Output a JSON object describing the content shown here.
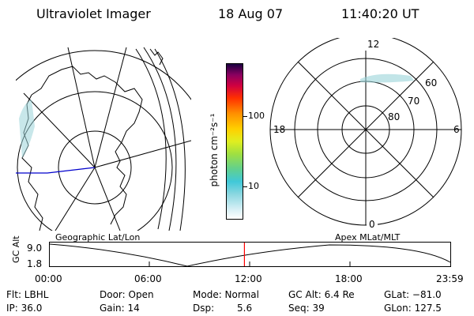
{
  "header": {
    "instrument": "Ultraviolet Imager",
    "date": "18 Aug 07",
    "time": "11:40:20 UT"
  },
  "colorbar": {
    "unit_label": "photon cm⁻²s⁻¹",
    "ticks": [
      "100",
      "10"
    ]
  },
  "polar_plot": {
    "mlt_labels": {
      "top": "12",
      "left": "18",
      "right": "6",
      "bottom": "0"
    },
    "lat_labels": [
      "60",
      "70",
      "80"
    ]
  },
  "timeline": {
    "left_title": "Geographic Lat/Lon",
    "right_title": "Apex MLat/MLT",
    "axis_label": "GC Alt",
    "y_ticks": [
      "9.0",
      "1.8"
    ],
    "x_ticks": [
      "00:00",
      "06:00",
      "12:00",
      "18:00",
      "23:59"
    ],
    "current_time_fraction": 0.486
  },
  "status": {
    "row1": {
      "filter": "Flt: LBHL",
      "door": "Door: Open",
      "mode": "Mode: Normal",
      "gc_alt": "GC Alt: 6.4 Re",
      "glat": "GLat: −81.0"
    },
    "row2": {
      "ip": "IP: 36.0",
      "gain": "Gain: 14",
      "dsp_label": "Dsp:",
      "dsp_value": "5.6",
      "seq": "Seq: 39",
      "glon": "GLon: 127.5"
    }
  },
  "colors": {
    "trajectory": "#0000cc",
    "time_marker": "#ff0000",
    "aurora": "#9ad4d8"
  }
}
